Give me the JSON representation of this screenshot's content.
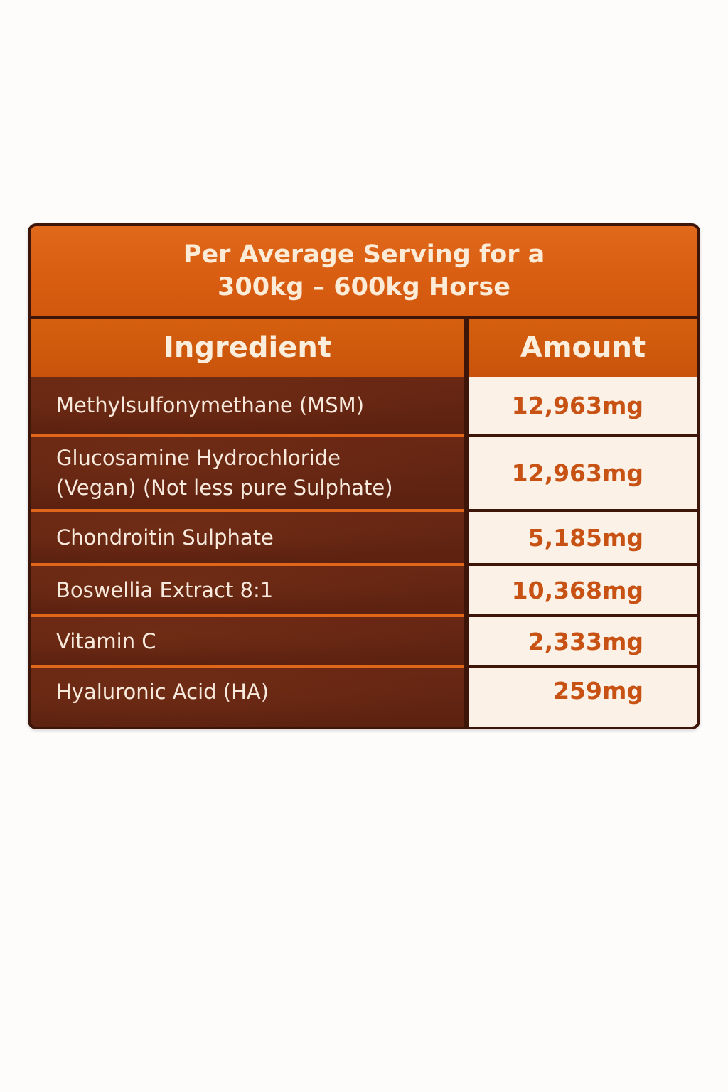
{
  "title": {
    "line1": "Per Average Serving for a",
    "line2": "300kg – 600kg Horse"
  },
  "table": {
    "headers": {
      "ingredient": "Ingredient",
      "amount": "Amount"
    },
    "rows": [
      {
        "ingredient_line1": "Methylsulfonymethane (MSM)",
        "ingredient_line2": "",
        "amount": "12,963mg"
      },
      {
        "ingredient_line1": "Glucosamine Hydrochloride",
        "ingredient_line2": "(Vegan) (Not less pure Sulphate)",
        "amount": "12,963mg"
      },
      {
        "ingredient_line1": "Chondroitin Sulphate",
        "ingredient_line2": "",
        "amount": "5,185mg"
      },
      {
        "ingredient_line1": "Boswellia Extract 8:1",
        "ingredient_line2": "",
        "amount": "10,368mg"
      },
      {
        "ingredient_line1": "Vitamin C",
        "ingredient_line2": "",
        "amount": "2,333mg"
      },
      {
        "ingredient_line1": "Hyaluronic Acid (HA)",
        "ingredient_line2": "",
        "amount": "259mg"
      }
    ]
  },
  "colors": {
    "title_background": "#d95e12",
    "header_background": "#c9530b",
    "ingredient_background": "#5c2110",
    "amount_background": "#fbf1e6",
    "amount_text": "#c75213",
    "border": "#3e1609",
    "row_separator": "#e0661a"
  }
}
